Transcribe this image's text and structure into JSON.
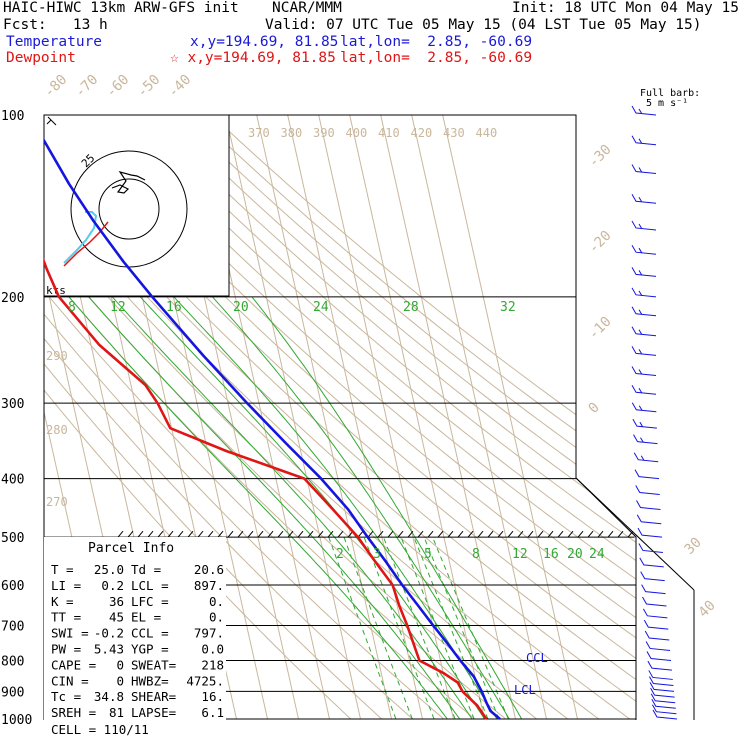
{
  "header": {
    "model": "HAIC-HIWC 13km ARW-GFS init",
    "org": "NCAR/MMM",
    "init": "Init: 18 UTC Mon 04 May 15",
    "fcst": "Fcst:   13 h",
    "valid": "Valid: 07 UTC Tue 05 May 15 (04 LST Tue 05 May 15)",
    "temp_label": "Temperature",
    "temp_loc": "x,y=194.69, 81.85",
    "temp_latlon": "lat,lon=  2.85, -60.69",
    "dew_label": "Dewpoint",
    "dew_loc": "☆ x,y=194.69, 81.85",
    "dew_latlon": "lat,lon=  2.85, -60.69"
  },
  "colors": {
    "temperature": "#1515e0",
    "dewpoint": "#e01515",
    "isotherm": "#c9b79c",
    "mixing_ratio": "#33a833",
    "hodo_cyan": "#55ccee"
  },
  "barb_key": {
    "title": "Full barb:",
    "value": "5 m s⁻¹"
  },
  "parcel_info": {
    "title": "Parcel Info",
    "rows": [
      [
        "T  =",
        "25.0",
        "Td =",
        "20.6"
      ],
      [
        "LI =",
        "0.2",
        "LCL =",
        "897."
      ],
      [
        "K  =",
        "36",
        "LFC =",
        "0."
      ],
      [
        "TT =",
        "45",
        "EL  =",
        "0."
      ],
      [
        "SWI =",
        "-0.2",
        "CCL =",
        "797."
      ],
      [
        "PW =",
        "5.43",
        "YGP =",
        "0.0"
      ],
      [
        "CAPE =",
        "0",
        "SWEAT=",
        "218"
      ],
      [
        "CIN  =",
        "0",
        "HWBZ=",
        "4725."
      ],
      [
        "Tc =",
        "34.8",
        "SHEAR=",
        "16."
      ],
      [
        "SREH =",
        "81",
        "LAPSE=",
        "6.1"
      ]
    ],
    "cell": "CELL = 110/11"
  },
  "hodograph": {
    "ring_label": "25",
    "kts_label": "kts"
  },
  "chart_data": {
    "type": "line",
    "title": "",
    "ylabel": "",
    "y_scale": "log-pressure (hPa)",
    "pressure_ticks": [
      "100",
      "200",
      "300",
      "400",
      "500",
      "600",
      "700",
      "800",
      "900",
      "1000"
    ],
    "pressure_tick_values": [
      100,
      200,
      300,
      400,
      500,
      600,
      700,
      800,
      900,
      1000
    ],
    "isotherm_labels_top": [
      "-80",
      "-70",
      "-60",
      "-50",
      "-40"
    ],
    "isotherm_labels_right": [
      "-30",
      "-20",
      "-10",
      "0",
      "30",
      "40"
    ],
    "theta_labels": [
      "370",
      "380",
      "390",
      "400",
      "410",
      "420",
      "430",
      "440"
    ],
    "theta_labels_left": [
      "290",
      "280",
      "270"
    ],
    "mixing_ratio_labels_upper": [
      "8",
      "12",
      "16",
      "20",
      "24",
      "28",
      "32"
    ],
    "mixing_ratio_labels_lower": [
      "2",
      "3",
      "5",
      "8",
      "12",
      "16",
      "20",
      "24"
    ],
    "annotations": [
      "CCL",
      "LCL"
    ],
    "series": [
      {
        "name": "Temperature",
        "color": "#1515e0",
        "points": [
          [
            100,
            -83.0
          ],
          [
            110,
            -80.5
          ],
          [
            130,
            -75.5
          ],
          [
            150,
            -70.2
          ],
          [
            175,
            -63.5
          ],
          [
            200,
            -56.8
          ],
          [
            250,
            -44.6
          ],
          [
            300,
            -33.8
          ],
          [
            350,
            -24.1
          ],
          [
            400,
            -15.4
          ],
          [
            450,
            -8.9
          ],
          [
            500,
            -4.6
          ],
          [
            550,
            -0.4
          ],
          [
            600,
            3.1
          ],
          [
            650,
            6.8
          ],
          [
            700,
            10.2
          ],
          [
            750,
            13.5
          ],
          [
            800,
            16.4
          ],
          [
            850,
            19.6
          ],
          [
            900,
            21.1
          ],
          [
            940,
            21.8
          ],
          [
            970,
            22.5
          ],
          [
            1000,
            25.0
          ]
        ]
      },
      {
        "name": "Dewpoint",
        "color": "#e01515",
        "points": [
          [
            100,
            -89.4
          ],
          [
            110,
            -88.6
          ],
          [
            130,
            -92.2
          ],
          [
            150,
            -91.1
          ],
          [
            180,
            -88.8
          ],
          [
            200,
            -86.9
          ],
          [
            240,
            -77.4
          ],
          [
            280,
            -65.3
          ],
          [
            300,
            -62.7
          ],
          [
            330,
            -60.4
          ],
          [
            360,
            -44.0
          ],
          [
            400,
            -20.8
          ],
          [
            450,
            -13.8
          ],
          [
            500,
            -7.7
          ],
          [
            550,
            -3.8
          ],
          [
            600,
            0.0
          ],
          [
            650,
            0.7
          ],
          [
            700,
            1.8
          ],
          [
            800,
            3.2
          ],
          [
            840,
            10.2
          ],
          [
            870,
            14.0
          ],
          [
            900,
            14.9
          ],
          [
            950,
            18.6
          ],
          [
            1000,
            20.6
          ]
        ]
      }
    ],
    "wind_barbs": {
      "pressures_hPa": [
        100,
        112,
        125,
        140,
        155,
        170,
        185,
        200,
        215,
        232,
        250,
        270,
        290,
        310,
        330,
        350,
        375,
        400,
        425,
        450,
        475,
        500,
        530,
        560,
        590,
        620,
        650,
        680,
        710,
        740,
        770,
        800,
        830,
        860,
        880,
        900,
        920,
        940,
        960,
        980,
        1000
      ]
    }
  }
}
